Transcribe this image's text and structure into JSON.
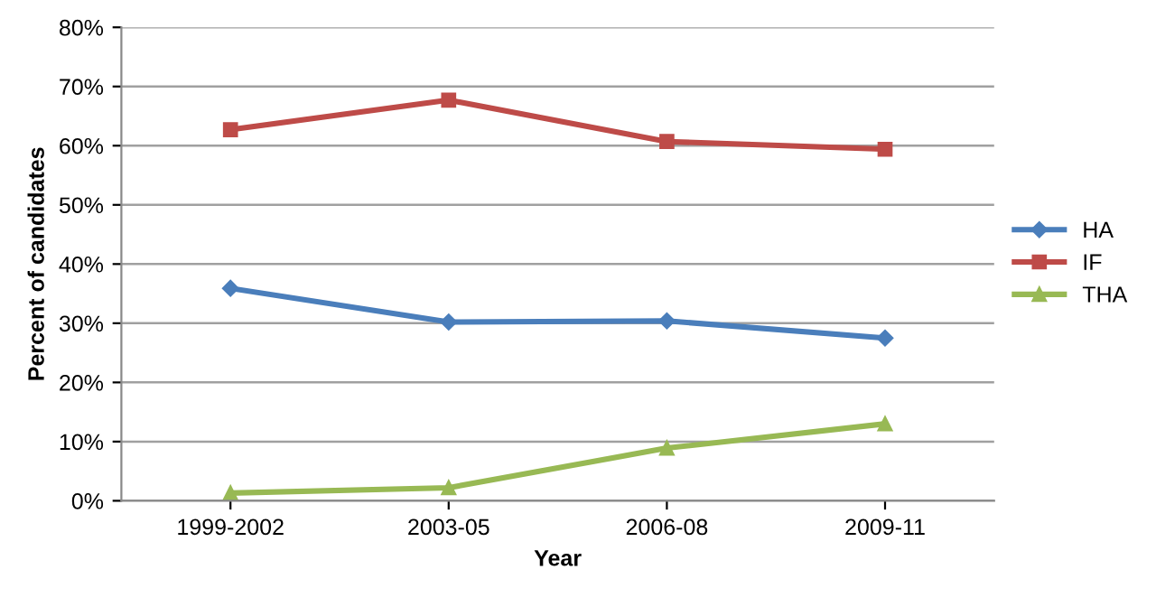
{
  "chart_data": {
    "type": "line",
    "xlabel": "Year",
    "ylabel": "Percent of candidates",
    "categories": [
      "1999-2002",
      "2003-05",
      "2006-08",
      "2009-11"
    ],
    "series": [
      {
        "name": "HA",
        "color": "#4a7ebb",
        "marker": "diamond",
        "values": [
          35.9,
          30.2,
          30.4,
          27.5
        ]
      },
      {
        "name": "IF",
        "color": "#be4b48",
        "marker": "square",
        "values": [
          62.7,
          67.7,
          60.7,
          59.4
        ]
      },
      {
        "name": "THA",
        "color": "#98b954",
        "marker": "triangle",
        "values": [
          1.3,
          2.2,
          8.9,
          13.0
        ]
      }
    ],
    "ylim": [
      0,
      80
    ],
    "yticks": [
      {
        "value": 0,
        "label": "0%"
      },
      {
        "value": 10,
        "label": "10%"
      },
      {
        "value": 20,
        "label": "20%"
      },
      {
        "value": 30,
        "label": "30%"
      },
      {
        "value": 40,
        "label": "40%"
      },
      {
        "value": 50,
        "label": "50%"
      },
      {
        "value": 60,
        "label": "60%"
      },
      {
        "value": 70,
        "label": "70%"
      },
      {
        "value": 80,
        "label": "80%"
      }
    ],
    "grid": "y",
    "legend": "right",
    "line_style": "solid"
  }
}
